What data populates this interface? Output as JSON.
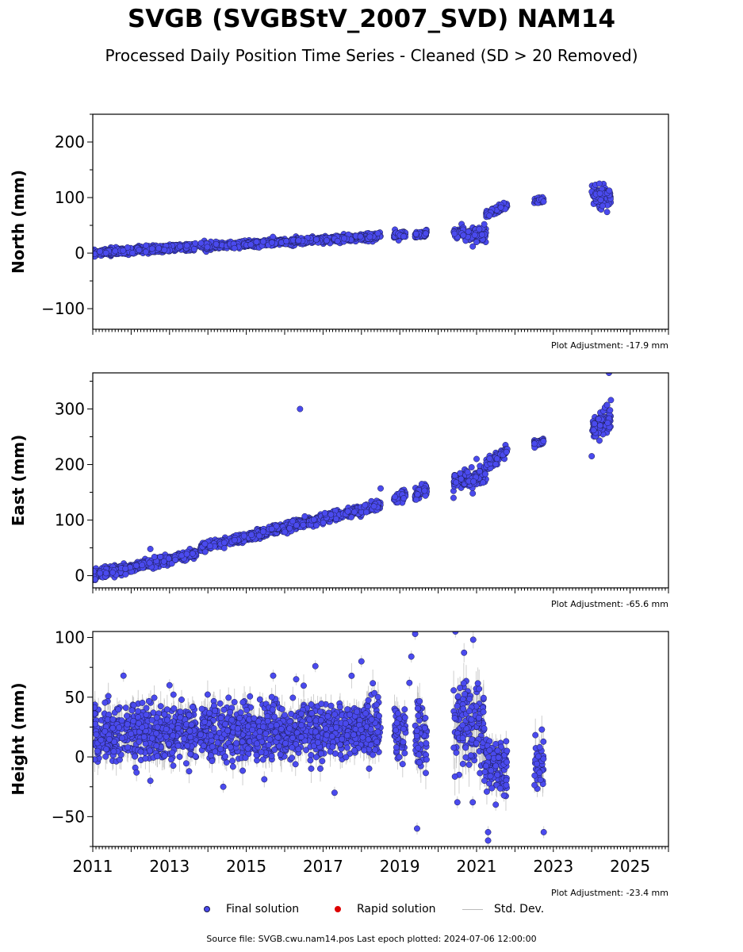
{
  "title": "SVGB (SVGBStV_2007_SVD) NAM14",
  "subtitle": "Processed Daily Position Time Series - Cleaned (SD > 20 Removed)",
  "legend": {
    "final": "Final solution",
    "rapid": "Rapid solution",
    "std": "Std. Dev."
  },
  "colors": {
    "final": "#4a4aee",
    "rapid": "#dd0000",
    "std": "#bbbbbb"
  },
  "footer": "Source file: SVGB.cwu.nam14.pos  Last epoch plotted: 2024-07-06 12:00:00",
  "chart_data": [
    {
      "type": "scatter",
      "ylabel": "North (mm)",
      "xlim": [
        2011,
        2026
      ],
      "ylim": [
        -137,
        250
      ],
      "yticks": [
        -100,
        0,
        100,
        200
      ],
      "plot_adjustment": "Plot Adjustment: -17.9 mm",
      "segments": [
        {
          "x0": 2011.0,
          "x1": 2013.7,
          "y0": 0,
          "y1": 12,
          "noise": 3,
          "sd": 3
        },
        {
          "x0": 2013.8,
          "x1": 2018.5,
          "y0": 12,
          "y1": 30,
          "noise": 3,
          "sd": 3
        },
        {
          "x0": 2018.85,
          "x1": 2019.15,
          "y0": 32,
          "y1": 33,
          "noise": 3,
          "sd": 3
        },
        {
          "x0": 2019.4,
          "x1": 2019.7,
          "y0": 32,
          "y1": 36,
          "noise": 3,
          "sd": 3
        },
        {
          "x0": 2020.4,
          "x1": 2021.25,
          "y0": 38,
          "y1": 30,
          "noise": 6,
          "sd": 4
        },
        {
          "x0": 2021.25,
          "x1": 2021.8,
          "y0": 70,
          "y1": 86,
          "noise": 3,
          "sd": 3
        },
        {
          "x0": 2022.5,
          "x1": 2022.75,
          "y0": 94,
          "y1": 95,
          "noise": 2,
          "sd": 3
        },
        {
          "x0": 2024.0,
          "x1": 2024.5,
          "y0": 100,
          "y1": 103,
          "noise": 9,
          "sd": 5
        }
      ],
      "outliers": [
        [
          2019.1,
          30
        ],
        [
          2020.9,
          12
        ],
        [
          2021.0,
          20
        ],
        [
          2024.1,
          123
        ],
        [
          2024.2,
          125
        ],
        [
          2024.4,
          74
        ],
        [
          2021.2,
          52
        ]
      ]
    },
    {
      "type": "scatter",
      "ylabel": "East (mm)",
      "xlim": [
        2011,
        2026
      ],
      "ylim": [
        -22,
        365
      ],
      "yticks": [
        0,
        100,
        200,
        300
      ],
      "plot_adjustment": "Plot Adjustment: -65.6 mm",
      "segments": [
        {
          "x0": 2011.0,
          "x1": 2013.7,
          "y0": 0,
          "y1": 40,
          "noise": 4,
          "sd": 3
        },
        {
          "x0": 2013.8,
          "x1": 2018.5,
          "y0": 50,
          "y1": 127,
          "noise": 4,
          "sd": 3
        },
        {
          "x0": 2018.85,
          "x1": 2019.15,
          "y0": 138,
          "y1": 145,
          "noise": 4,
          "sd": 3
        },
        {
          "x0": 2019.4,
          "x1": 2019.7,
          "y0": 145,
          "y1": 158,
          "noise": 5,
          "sd": 3
        },
        {
          "x0": 2020.4,
          "x1": 2021.25,
          "y0": 170,
          "y1": 180,
          "noise": 7,
          "sd": 4
        },
        {
          "x0": 2021.25,
          "x1": 2021.8,
          "y0": 200,
          "y1": 225,
          "noise": 5,
          "sd": 3
        },
        {
          "x0": 2022.5,
          "x1": 2022.75,
          "y0": 238,
          "y1": 242,
          "noise": 3,
          "sd": 3
        },
        {
          "x0": 2024.0,
          "x1": 2024.5,
          "y0": 268,
          "y1": 280,
          "noise": 12,
          "sd": 6
        }
      ],
      "outliers": [
        [
          2016.4,
          300
        ],
        [
          2024.45,
          365
        ],
        [
          2024.5,
          316
        ],
        [
          2024.0,
          215
        ],
        [
          2020.4,
          140
        ],
        [
          2020.9,
          148
        ],
        [
          2021.0,
          210
        ],
        [
          2012.5,
          48
        ],
        [
          2018.5,
          157
        ]
      ]
    },
    {
      "type": "scatter",
      "ylabel": "Height (mm)",
      "xlim": [
        2011,
        2026
      ],
      "ylim": [
        -75,
        105
      ],
      "yticks": [
        -50,
        0,
        50,
        100
      ],
      "plot_adjustment": "Plot Adjustment: -23.4 mm",
      "segments": [
        {
          "x0": 2011.0,
          "x1": 2013.7,
          "y0": 20,
          "y1": 20,
          "noise": 11,
          "sd": 8
        },
        {
          "x0": 2013.8,
          "x1": 2018.5,
          "y0": 22,
          "y1": 22,
          "noise": 12,
          "sd": 8
        },
        {
          "x0": 2018.85,
          "x1": 2019.15,
          "y0": 18,
          "y1": 18,
          "noise": 12,
          "sd": 8
        },
        {
          "x0": 2019.4,
          "x1": 2019.7,
          "y0": 20,
          "y1": 20,
          "noise": 15,
          "sd": 10
        },
        {
          "x0": 2020.4,
          "x1": 2021.2,
          "y0": 30,
          "y1": 30,
          "noise": 18,
          "sd": 12
        },
        {
          "x0": 2021.2,
          "x1": 2021.8,
          "y0": -5,
          "y1": -5,
          "noise": 12,
          "sd": 8
        },
        {
          "x0": 2022.5,
          "x1": 2022.75,
          "y0": -5,
          "y1": -5,
          "noise": 10,
          "sd": 9
        }
      ],
      "outliers": [
        [
          2011.8,
          68
        ],
        [
          2012.5,
          -20
        ],
        [
          2013.0,
          60
        ],
        [
          2014.4,
          -25
        ],
        [
          2015.7,
          68
        ],
        [
          2016.3,
          65
        ],
        [
          2016.8,
          76
        ],
        [
          2017.3,
          -30
        ],
        [
          2018.0,
          80
        ],
        [
          2019.4,
          103
        ],
        [
          2019.3,
          84
        ],
        [
          2019.45,
          -60
        ],
        [
          2020.45,
          105
        ],
        [
          2020.5,
          -38
        ],
        [
          2020.9,
          -38
        ],
        [
          2021.3,
          -63
        ],
        [
          2021.3,
          -70
        ],
        [
          2021.5,
          -40
        ],
        [
          2022.75,
          -63
        ],
        [
          2019.25,
          62
        ]
      ]
    }
  ],
  "xticks": [
    2011,
    2013,
    2015,
    2017,
    2019,
    2021,
    2023,
    2025
  ]
}
